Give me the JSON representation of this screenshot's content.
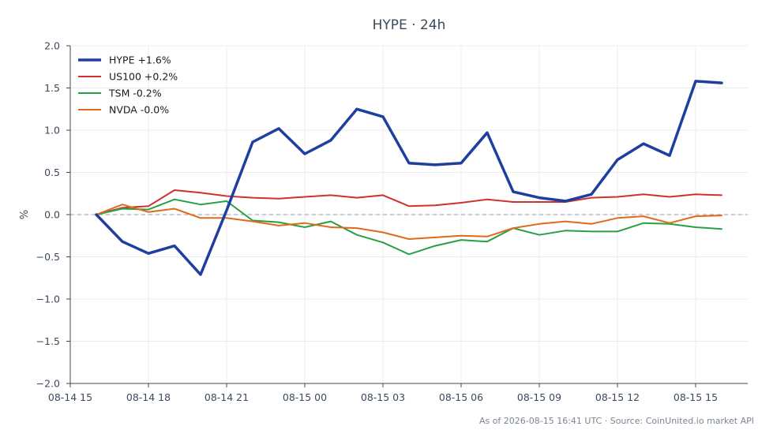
{
  "chart_data": {
    "type": "line",
    "title": "HYPE · 24h",
    "xlabel": "",
    "ylabel": "%",
    "ylim": [
      -2.0,
      2.0
    ],
    "yticks": [
      "2.0",
      "1.5",
      "1.0",
      "0.5",
      "0.0",
      "−0.5",
      "−1.0",
      "−1.5",
      "−2.0"
    ],
    "ytick_values": [
      2.0,
      1.5,
      1.0,
      0.5,
      0.0,
      -0.5,
      -1.0,
      -1.5,
      -2.0
    ],
    "xticks": [
      "08-14 15",
      "08-14 18",
      "08-14 21",
      "08-15 00",
      "08-15 03",
      "08-15 06",
      "08-15 09",
      "08-15 12",
      "08-15 15"
    ],
    "x_start": "2026-08-14 15:00",
    "x_end": "2026-08-15 17:00",
    "x": [
      "2026-08-14 16:00",
      "2026-08-14 17:00",
      "2026-08-14 18:00",
      "2026-08-14 19:00",
      "2026-08-14 20:00",
      "2026-08-14 21:00",
      "2026-08-14 22:00",
      "2026-08-14 23:00",
      "2026-08-15 00:00",
      "2026-08-15 01:00",
      "2026-08-15 02:00",
      "2026-08-15 03:00",
      "2026-08-15 04:00",
      "2026-08-15 05:00",
      "2026-08-15 06:00",
      "2026-08-15 07:00",
      "2026-08-15 08:00",
      "2026-08-15 09:00",
      "2026-08-15 10:00",
      "2026-08-15 11:00",
      "2026-08-15 12:00",
      "2026-08-15 13:00",
      "2026-08-15 14:00",
      "2026-08-15 15:00",
      "2026-08-15 16:00"
    ],
    "baseline": 0.0,
    "grid": true,
    "legend": "top-left",
    "series": [
      {
        "name": "HYPE +1.6%",
        "color": "#1f3fa0",
        "width": 3.5,
        "values": [
          0.0,
          -0.32,
          -0.46,
          -0.37,
          -0.71,
          0.05,
          0.86,
          1.02,
          0.72,
          0.88,
          1.25,
          1.16,
          0.61,
          0.59,
          0.61,
          0.97,
          0.27,
          0.2,
          0.16,
          0.24,
          0.65,
          0.84,
          0.7,
          1.58,
          1.56
        ]
      },
      {
        "name": "US100 +0.2%",
        "color": "#d0312d",
        "width": 2,
        "values": [
          0.0,
          0.08,
          0.1,
          0.29,
          0.26,
          0.22,
          0.2,
          0.19,
          0.21,
          0.23,
          0.2,
          0.23,
          0.1,
          0.11,
          0.14,
          0.18,
          0.15,
          0.15,
          0.15,
          0.2,
          0.21,
          0.24,
          0.21,
          0.24,
          0.23
        ]
      },
      {
        "name": "TSM -0.2%",
        "color": "#27a045",
        "width": 2,
        "values": [
          0.0,
          0.07,
          0.06,
          0.18,
          0.12,
          0.16,
          -0.07,
          -0.09,
          -0.15,
          -0.08,
          -0.24,
          -0.33,
          -0.47,
          -0.37,
          -0.3,
          -0.32,
          -0.16,
          -0.24,
          -0.19,
          -0.2,
          -0.2,
          -0.1,
          -0.11,
          -0.15,
          -0.17
        ]
      },
      {
        "name": "NVDA -0.0%",
        "color": "#e06a1b",
        "width": 2,
        "values": [
          0.0,
          0.12,
          0.03,
          0.07,
          -0.04,
          -0.04,
          -0.08,
          -0.13,
          -0.1,
          -0.15,
          -0.16,
          -0.21,
          -0.29,
          -0.27,
          -0.25,
          -0.26,
          -0.16,
          -0.11,
          -0.08,
          -0.11,
          -0.04,
          -0.02,
          -0.1,
          -0.02,
          -0.01
        ]
      }
    ],
    "footer": "As of 2026-08-15 16:41 UTC · Source: CoinUnited.io market API"
  }
}
